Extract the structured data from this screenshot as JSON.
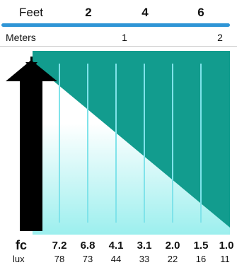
{
  "scale": {
    "feet_label": "Feet",
    "feet_ticks": [
      "2",
      "4",
      "6"
    ],
    "meters_label": "Meters",
    "meters_ticks": [
      "1",
      "2"
    ]
  },
  "table": {
    "fc_label": "fc",
    "lux_label": "lux",
    "fc_values": [
      "7.2",
      "6.8",
      "4.1",
      "3.1",
      "2.0",
      "1.5",
      "1.0"
    ],
    "lux_values": [
      "78",
      "73",
      "44",
      "33",
      "22",
      "16",
      "11"
    ]
  },
  "colors": {
    "feet_rule": "#2f95d6",
    "panel": "#129c8e",
    "light_beam": "#a9f1ef",
    "distance_lines": "#7fe3ea",
    "fixture": "#000000"
  },
  "icons": {
    "fixture": "lamp-post-icon"
  }
}
